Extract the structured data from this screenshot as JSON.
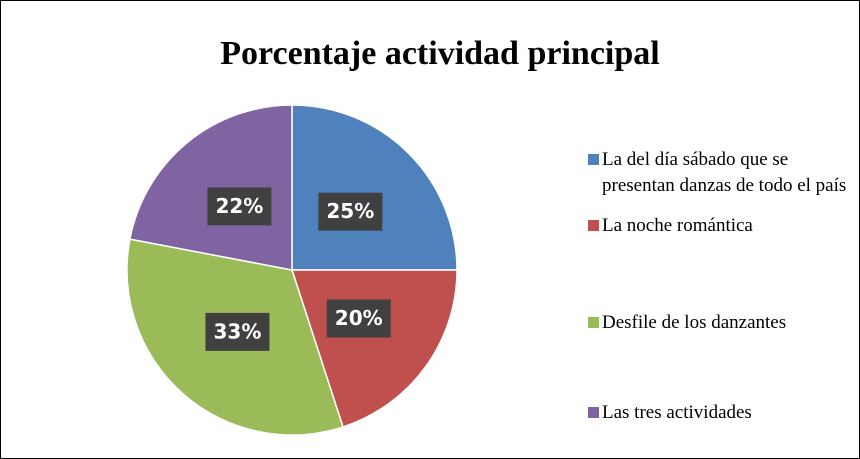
{
  "chart_data": {
    "type": "pie",
    "title": "Porcentaje actividad principal",
    "categories": [
      "La del día sábado que se presentan danzas de todo el país",
      "La noche romántica",
      "Desfile de los danzantes",
      "Las tres actividades"
    ],
    "values": [
      25,
      20,
      33,
      22
    ],
    "value_labels": [
      "25%",
      "20%",
      "33%",
      "22%"
    ],
    "colors": [
      "#4f81bd",
      "#c0504d",
      "#9bbb59",
      "#8064a2"
    ],
    "legend": "right"
  }
}
